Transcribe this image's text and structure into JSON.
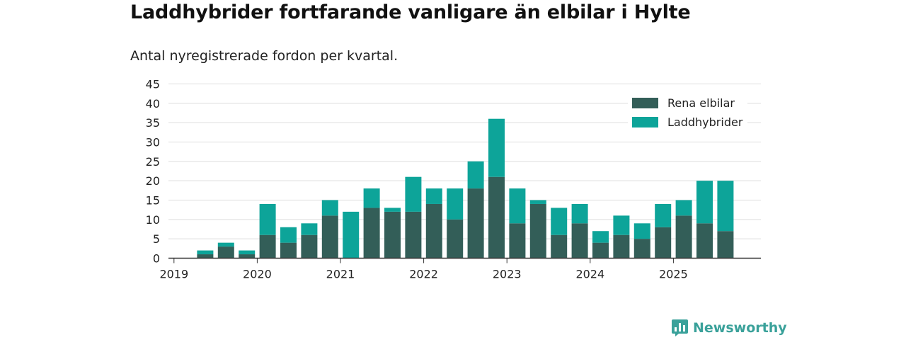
{
  "header": {
    "title": "Laddhybrider fortfarande vanligare än elbilar i Hylte",
    "subtitle": "Antal nyregistrerade fordon per kvartal."
  },
  "brand": {
    "name": "Newsworthy",
    "color": "#3aa19a"
  },
  "chart_data": {
    "type": "bar",
    "stacked": true,
    "title": "Laddhybrider fortfarande vanligare än elbilar i Hylte",
    "subtitle": "Antal nyregistrerade fordon per kvartal.",
    "xlabel": "",
    "ylabel": "",
    "ylim": [
      0,
      45
    ],
    "yticks": [
      0,
      5,
      10,
      15,
      20,
      25,
      30,
      35,
      40,
      45
    ],
    "grid": true,
    "legend_position": "top-right",
    "year_ticks": [
      "2019",
      "2020",
      "2021",
      "2022",
      "2023",
      "2024",
      "2025"
    ],
    "categories": [
      "2019 Q1",
      "2019 Q2",
      "2019 Q3",
      "2019 Q4",
      "2020 Q1",
      "2020 Q2",
      "2020 Q3",
      "2020 Q4",
      "2021 Q1",
      "2021 Q2",
      "2021 Q3",
      "2021 Q4",
      "2022 Q1",
      "2022 Q2",
      "2022 Q3",
      "2022 Q4",
      "2023 Q1",
      "2023 Q2",
      "2023 Q3",
      "2023 Q4",
      "2024 Q1",
      "2024 Q2",
      "2024 Q3",
      "2024 Q4",
      "2025 Q1",
      "2025 Q2",
      "2025 Q3"
    ],
    "series": [
      {
        "name": "Rena elbilar",
        "color": "#335e58",
        "values": [
          0,
          1,
          3,
          1,
          6,
          4,
          6,
          11,
          0,
          13,
          12,
          12,
          14,
          10,
          18,
          21,
          9,
          14,
          6,
          9,
          4,
          6,
          5,
          8,
          11,
          9,
          7
        ]
      },
      {
        "name": "Laddhybrider",
        "color": "#0da499",
        "values": [
          0,
          1,
          1,
          1,
          8,
          4,
          3,
          4,
          12,
          5,
          1,
          9,
          4,
          8,
          7,
          15,
          9,
          1,
          7,
          5,
          3,
          5,
          4,
          6,
          4,
          11,
          13
        ]
      }
    ]
  }
}
